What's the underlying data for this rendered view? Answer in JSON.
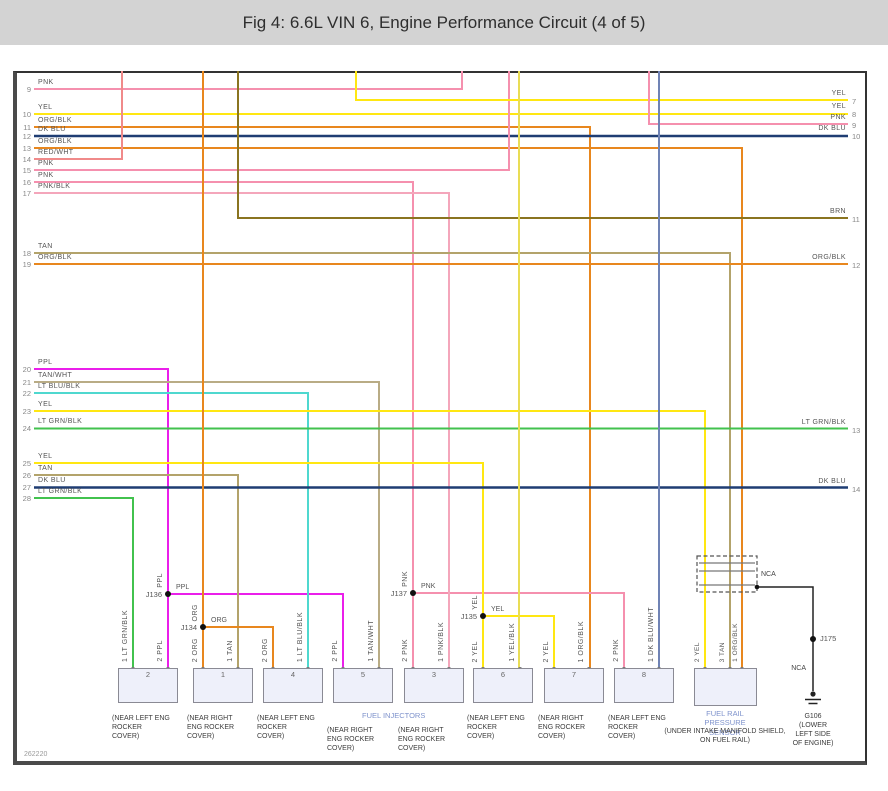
{
  "title": "Fig 4: 6.6L VIN 6, Engine Performance Circuit (4 of 5)",
  "footer_code": "262220",
  "left_pins": [
    {
      "pin": "9",
      "label": "PNK"
    },
    {
      "pin": "10",
      "label": "YEL"
    },
    {
      "pin": "11",
      "label": "ORG/BLK"
    },
    {
      "pin": "12",
      "label": "DK BLU"
    },
    {
      "pin": "13",
      "label": "ORG/BLK"
    },
    {
      "pin": "14",
      "label": "RED/WHT"
    },
    {
      "pin": "15",
      "label": "PNK"
    },
    {
      "pin": "16",
      "label": "PNK"
    },
    {
      "pin": "17",
      "label": "PNK/BLK"
    },
    {
      "pin": "18",
      "label": "TAN"
    },
    {
      "pin": "19",
      "label": "ORG/BLK"
    },
    {
      "pin": "20",
      "label": "PPL"
    },
    {
      "pin": "21",
      "label": "TAN/WHT"
    },
    {
      "pin": "22",
      "label": "LT BLU/BLK"
    },
    {
      "pin": "23",
      "label": "YEL"
    },
    {
      "pin": "24",
      "label": "LT GRN/BLK"
    },
    {
      "pin": "25",
      "label": "YEL"
    },
    {
      "pin": "26",
      "label": "TAN"
    },
    {
      "pin": "27",
      "label": "DK BLU"
    },
    {
      "pin": "28",
      "label": "LT GRN/BLK"
    }
  ],
  "right_pins": [
    {
      "pin": "7",
      "label": "YEL"
    },
    {
      "pin": "8",
      "label": "YEL"
    },
    {
      "pin": "9",
      "label": "PNK"
    },
    {
      "pin": "10",
      "label": "DK BLU"
    },
    {
      "pin": "11",
      "label": "BRN"
    },
    {
      "pin": "12",
      "label": "ORG/BLK"
    },
    {
      "pin": "13",
      "label": "LT GRN/BLK"
    },
    {
      "pin": "14",
      "label": "DK BLU"
    }
  ],
  "junctions": [
    {
      "id": "J136",
      "wire": "PPL"
    },
    {
      "id": "J134",
      "wire": "ORG"
    },
    {
      "id": "J137",
      "wire": "PNK"
    },
    {
      "id": "J135",
      "wire": "YEL"
    },
    {
      "id": "J175",
      "wire": ""
    }
  ],
  "injectors": [
    {
      "number": "2",
      "pin_left": "1 LT GRN/BLK",
      "pin_right": "2 PPL",
      "location": "(NEAR LEFT ENG ROCKER COVER)"
    },
    {
      "number": "1",
      "pin_left": "2 ORG",
      "pin_right": "1 TAN",
      "location": "(NEAR RIGHT ENG ROCKER COVER)"
    },
    {
      "number": "4",
      "pin_left": "2 ORG",
      "pin_right": "1 LT BLU/BLK",
      "location": "(NEAR LEFT ENG ROCKER COVER)"
    },
    {
      "number": "5",
      "pin_left": "2 PPL",
      "pin_right": "1 TAN/WHT",
      "location": "(NEAR RIGHT ENG ROCKER COVER)"
    },
    {
      "number": "3",
      "pin_left": "2 PNK",
      "pin_right": "1 PNK/BLK",
      "location": "(NEAR RIGHT ENG ROCKER COVER)"
    },
    {
      "number": "6",
      "pin_left": "2 YEL",
      "pin_right": "1 YEL/BLK",
      "location": "(NEAR LEFT ENG ROCKER COVER)"
    },
    {
      "number": "7",
      "pin_left": "2 YEL",
      "pin_right": "1 ORG/BLK",
      "location": "(NEAR RIGHT ENG ROCKER COVER)"
    },
    {
      "number": "8",
      "pin_left": "2 PNK",
      "pin_right": "1 DK BLU/WHT",
      "location": "(NEAR LEFT ENG ROCKER COVER)"
    }
  ],
  "fuel_injectors_label": "FUEL INJECTORS",
  "sensor": {
    "name": "FUEL RAIL PRESSURE SENSOR",
    "location": "(UNDER INTAKE MANIFOLD SHIELD, ON FUEL RAIL)",
    "pin_1": "2 YEL",
    "pin_2": "3 TAN",
    "pin_3": "1 ORG/BLK"
  },
  "nca_label": "NCA",
  "ground": {
    "name_and_location": "G106 (LOWER LEFT SIDE OF ENGINE)"
  },
  "colors": {
    "header_bg": "#d3d3d3",
    "pnk": "#f590ae",
    "red_wht": "#f08a8a",
    "yel": "#ffe712",
    "org_blk": "#e8871e",
    "dk_blu": "#1f3d73",
    "brn": "#8a7420",
    "tan": "#b3a36b",
    "tan_wht": "#b9ac85",
    "ppl": "#ea1fea",
    "lt_blu_blk": "#4fd8cf",
    "lt_grn_blk": "#42c24e",
    "dk_blu_wht": "#7083b5",
    "yel_blk": "#e9dd55",
    "pnk_blk": "#f4a6bb",
    "blue_caption": "#7e92cc",
    "wire_black": "#222222"
  }
}
